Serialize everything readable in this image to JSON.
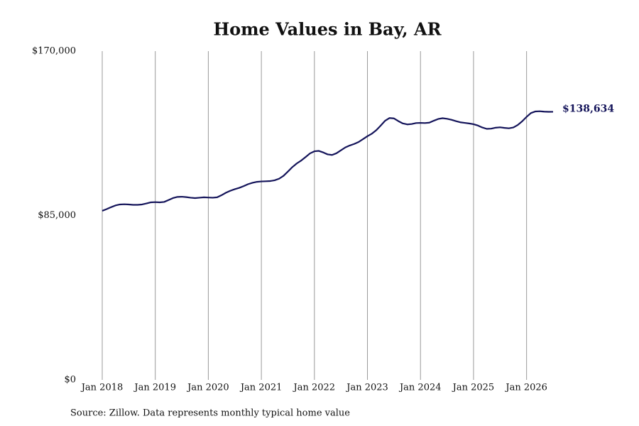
{
  "chart_data": {
    "type": "line",
    "title": "Home Values in Bay, AR",
    "source": "Source: Zillow. Data represents monthly typical home value",
    "x": [
      "2018-01",
      "2018-02",
      "2018-03",
      "2018-04",
      "2018-05",
      "2018-06",
      "2018-07",
      "2018-08",
      "2018-09",
      "2018-10",
      "2018-11",
      "2018-12",
      "2019-01",
      "2019-02",
      "2019-03",
      "2019-04",
      "2019-05",
      "2019-06",
      "2019-07",
      "2019-08",
      "2019-09",
      "2019-10",
      "2019-11",
      "2019-12",
      "2020-01",
      "2020-02",
      "2020-03",
      "2020-04",
      "2020-05",
      "2020-06",
      "2020-07",
      "2020-08",
      "2020-09",
      "2020-10",
      "2020-11",
      "2020-12",
      "2021-01",
      "2021-02",
      "2021-03",
      "2021-04",
      "2021-05",
      "2021-06",
      "2021-07",
      "2021-08",
      "2021-09",
      "2021-10",
      "2021-11",
      "2021-12",
      "2022-01",
      "2022-02",
      "2022-03",
      "2022-04",
      "2022-05",
      "2022-06",
      "2022-07",
      "2022-08",
      "2022-09",
      "2022-10",
      "2022-11",
      "2022-12",
      "2023-01",
      "2023-02",
      "2023-03",
      "2023-04",
      "2023-05",
      "2023-06",
      "2023-07",
      "2023-08",
      "2023-09",
      "2023-10",
      "2023-11",
      "2023-12",
      "2024-01",
      "2024-02",
      "2024-03",
      "2024-04",
      "2024-05",
      "2024-06",
      "2024-07",
      "2024-08",
      "2024-09",
      "2024-10",
      "2024-11",
      "2024-12",
      "2025-01",
      "2025-02",
      "2025-03",
      "2025-04",
      "2025-05",
      "2025-06",
      "2025-07",
      "2025-08",
      "2025-09",
      "2025-10",
      "2025-11",
      "2025-12",
      "2026-01",
      "2026-02",
      "2026-03",
      "2026-04",
      "2026-05",
      "2026-06",
      "2026-07"
    ],
    "series": [
      {
        "name": "Home value",
        "color": "#14145a",
        "values": [
          87400,
          88300,
          89300,
          90200,
          90700,
          90800,
          90700,
          90500,
          90500,
          90700,
          91200,
          91800,
          91900,
          91800,
          92000,
          93000,
          94000,
          94600,
          94700,
          94500,
          94200,
          94000,
          94200,
          94400,
          94300,
          94200,
          94400,
          95500,
          96800,
          97800,
          98600,
          99300,
          100200,
          101200,
          101900,
          102400,
          102600,
          102700,
          102800,
          103200,
          104000,
          105500,
          107700,
          110000,
          111900,
          113400,
          115200,
          117100,
          118200,
          118400,
          117600,
          116600,
          116300,
          117200,
          118700,
          120200,
          121200,
          122000,
          123000,
          124500,
          126000,
          127300,
          129100,
          131500,
          134000,
          135400,
          135200,
          133800,
          132600,
          132100,
          132300,
          132800,
          132900,
          132800,
          133000,
          134000,
          134900,
          135300,
          135000,
          134500,
          133800,
          133200,
          132900,
          132600,
          132200,
          131500,
          130500,
          129800,
          129900,
          130400,
          130600,
          130300,
          130100,
          130500,
          131800,
          133700,
          136000,
          138000,
          138800,
          138900,
          138700,
          138600,
          138634
        ],
        "value_labels": [
          null,
          null,
          null,
          null,
          null,
          null,
          null,
          null,
          null,
          null,
          null,
          null,
          null,
          null,
          null,
          null,
          null,
          null,
          null,
          null,
          null,
          null,
          null,
          null,
          null,
          null,
          null,
          null,
          null,
          null,
          null,
          null,
          null,
          null,
          null,
          null,
          null,
          null,
          null,
          null,
          null,
          null,
          null,
          null,
          null,
          null,
          null,
          null,
          null,
          null,
          null,
          null,
          null,
          null,
          null,
          null,
          null,
          null,
          null,
          null,
          null,
          null,
          null,
          null,
          null,
          null,
          null,
          null,
          null,
          null,
          null,
          null,
          null,
          null,
          null,
          null,
          null,
          null,
          null,
          null,
          null,
          null,
          null,
          null,
          null,
          null,
          null,
          null,
          null,
          null,
          null,
          null,
          null,
          null,
          null,
          null,
          null,
          null,
          null,
          null,
          null,
          null,
          "$138,634"
        ]
      }
    ],
    "xlim": [
      "2018-01",
      "2026-07"
    ],
    "xticks": [
      {
        "value": "2018-01",
        "label": "Jan 2018"
      },
      {
        "value": "2019-01",
        "label": "Jan 2019"
      },
      {
        "value": "2020-01",
        "label": "Jan 2020"
      },
      {
        "value": "2021-01",
        "label": "Jan 2021"
      },
      {
        "value": "2022-01",
        "label": "Jan 2022"
      },
      {
        "value": "2023-01",
        "label": "Jan 2023"
      },
      {
        "value": "2024-01",
        "label": "Jan 2024"
      },
      {
        "value": "2025-01",
        "label": "Jan 2025"
      },
      {
        "value": "2026-01",
        "label": "Jan 2026"
      }
    ],
    "ylim": [
      0,
      170000
    ],
    "yticks": [
      {
        "value": 0,
        "label": "$0"
      },
      {
        "value": 85000,
        "label": "$85,000"
      },
      {
        "value": 170000,
        "label": "$170,000"
      }
    ],
    "grid": "x"
  }
}
